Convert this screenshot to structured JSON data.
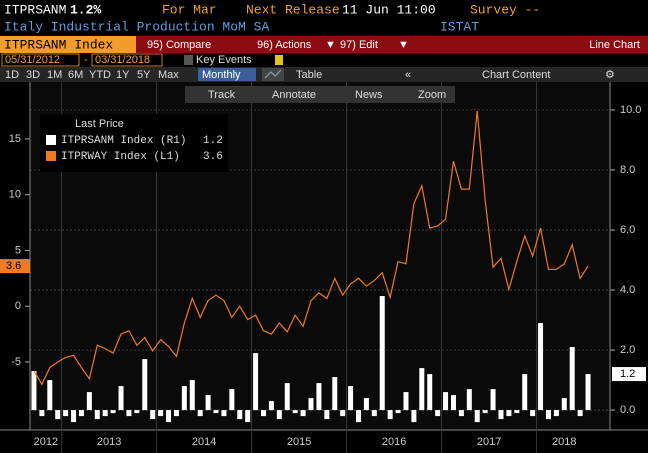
{
  "header": {
    "ticker": "ITPRSANM",
    "change": "1.2%",
    "period": "For Mar",
    "next_release": "Next Release",
    "release_date": "11 Jun 11:00",
    "survey": "Survey --",
    "title": "Italy Industrial Production MoM SA",
    "source": "ISTAT"
  },
  "toolbar": {
    "security": "ITPRSANM Index",
    "buttons": [
      "95) Compare",
      "96) Actions",
      "97) Edit"
    ],
    "view": "Line Chart"
  },
  "dates": {
    "start": "05/31/2012",
    "separator": "-",
    "end": "03/31/2018",
    "key_events": "Key Events"
  },
  "periods": [
    "1D",
    "3D",
    "1M",
    "6M",
    "YTD",
    "1Y",
    "5Y",
    "Max"
  ],
  "frequency": "Monthly",
  "table": "Table",
  "chart_content": "Chart Content",
  "chart_tools": [
    "Track",
    "Annotate",
    "News",
    "Zoom"
  ],
  "chart_data": {
    "type": "bar-line",
    "legend_title": "Last Price",
    "year_labels": [
      "2012",
      "2013",
      "2014",
      "2015",
      "2016",
      "2017",
      "2018"
    ],
    "ylim": [
      -10.2,
      20.1
    ],
    "yticks": [
      -5,
      0,
      5,
      10,
      15
    ],
    "y2lim": [
      -0.33,
      10.93
    ],
    "y2ticks": [
      {
        "value": 0,
        "label": "0.0"
      },
      {
        "value": 2,
        "label": "2.0"
      },
      {
        "value": 4,
        "label": "4.0"
      },
      {
        "value": 6,
        "label": "6.0"
      },
      {
        "value": 8,
        "label": "8.0"
      },
      {
        "value": 10,
        "label": "10.0"
      }
    ],
    "grid": true,
    "series": [
      {
        "name": "ITPRSANM Index (R1)",
        "color": "#ffffff",
        "axis": "y2",
        "kind": "bar",
        "values": [
          1.3,
          -0.2,
          1.0,
          -0.3,
          -0.2,
          -0.4,
          -0.2,
          0.6,
          -0.3,
          -0.2,
          -0.1,
          0.8,
          -0.2,
          -0.1,
          1.7,
          -0.3,
          -0.2,
          -0.4,
          -0.2,
          0.8,
          1.0,
          -0.2,
          0.5,
          -0.1,
          -0.2,
          0.7,
          -0.3,
          -0.4,
          1.9,
          -0.2,
          0.3,
          -0.3,
          0.9,
          -0.1,
          -0.2,
          0.4,
          0.9,
          -0.3,
          1.1,
          -0.2,
          0.8,
          -0.4,
          0.4,
          -0.2,
          3.8,
          -0.3,
          -0.1,
          0.6,
          -0.4,
          1.4,
          1.2,
          -0.2,
          0.6,
          0.5,
          -0.2,
          0.7,
          -0.4,
          -0.1,
          0.7,
          -0.3,
          -0.2,
          -0.1,
          1.2,
          -0.2,
          2.9,
          -0.3,
          -0.2,
          0.4,
          2.1,
          -0.2,
          1.2
        ]
      },
      {
        "name": "ITPRWAY Index (L1)",
        "color": "#f07a20",
        "axis": "y",
        "kind": "line",
        "values": [
          -5.8,
          -7.0,
          -5.5,
          -5.0,
          -4.6,
          -4.4,
          -5.5,
          -6.5,
          -3.5,
          -3.8,
          -4.2,
          -2.5,
          -2.2,
          -3.5,
          -2.8,
          -4.0,
          -3.0,
          -3.6,
          -4.5,
          -1.5,
          0.7,
          -1.0,
          0.5,
          1.0,
          0.5,
          -1.0,
          0.0,
          -1.2,
          -0.8,
          -2.2,
          -2.5,
          -1.5,
          -2.3,
          -0.8,
          -1.8,
          0.5,
          1.2,
          0.7,
          2.5,
          1.0,
          2.0,
          2.5,
          1.8,
          2.3,
          3.0,
          0.8,
          4.0,
          3.8,
          9.2,
          10.8,
          7.0,
          7.2,
          7.8,
          13.0,
          10.5,
          10.5,
          17.5,
          9.5,
          3.5,
          4.3,
          1.5,
          4.0,
          6.3,
          4.5,
          7.0,
          3.3,
          3.3,
          3.8,
          5.5,
          2.5,
          3.6
        ]
      }
    ]
  }
}
